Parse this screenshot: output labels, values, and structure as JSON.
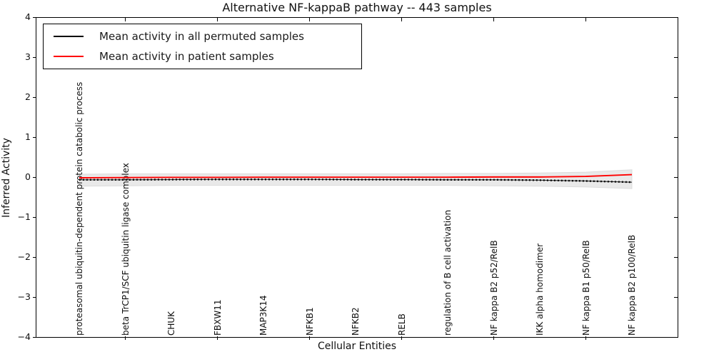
{
  "title": "Alternative NF-kappaB pathway -- 443 samples",
  "chart_data": {
    "type": "line",
    "title": "Alternative NF-kappaB pathway -- 443 samples",
    "xlabel": "Cellular Entities",
    "ylabel": "Inferred Activity",
    "ylim": [
      -4,
      4
    ],
    "yticks": [
      4,
      3,
      2,
      1,
      0,
      -1,
      -2,
      -3,
      -4
    ],
    "grid": false,
    "legend_position": "upper left",
    "x_tick_indices": [
      1,
      3,
      5,
      7,
      9,
      11
    ],
    "categories": [
      "proteasomal ubiquitin-dependent protein catabolic process",
      "beta TrCP1/SCF ubiquitin ligase complex",
      "CHUK",
      "FBXW11",
      "MAP3K14",
      "NFKB1",
      "NFKB2",
      "RELB",
      "regulation of B cell activation",
      "NF kappa B2 p52/RelB",
      "IKK alpha homodimer",
      "NF kappa B1 p50/RelB",
      "NF kappa B2 p100/RelB"
    ],
    "series": [
      {
        "name": "Mean activity in all permuted samples",
        "color": "#000000",
        "line_style": "solid with dotted markers",
        "values": [
          -0.05,
          -0.05,
          -0.045,
          -0.04,
          -0.04,
          -0.04,
          -0.045,
          -0.045,
          -0.05,
          -0.05,
          -0.06,
          -0.08,
          -0.11
        ]
      },
      {
        "name": "Mean activity in patient samples",
        "color": "#ff0000",
        "line_style": "solid",
        "values": [
          0.0,
          0.005,
          0.01,
          0.01,
          0.015,
          0.015,
          0.015,
          0.015,
          0.015,
          0.02,
          0.02,
          0.035,
          0.08
        ]
      }
    ],
    "band": {
      "name": "permuted samples range",
      "color": "#e9e9e9",
      "upper": [
        0.09,
        0.1,
        0.1,
        0.1,
        0.1,
        0.1,
        0.1,
        0.1,
        0.11,
        0.11,
        0.12,
        0.14,
        0.2
      ],
      "lower": [
        -0.21,
        -0.2,
        -0.19,
        -0.19,
        -0.19,
        -0.19,
        -0.19,
        -0.19,
        -0.19,
        -0.2,
        -0.21,
        -0.23,
        -0.27
      ]
    }
  }
}
